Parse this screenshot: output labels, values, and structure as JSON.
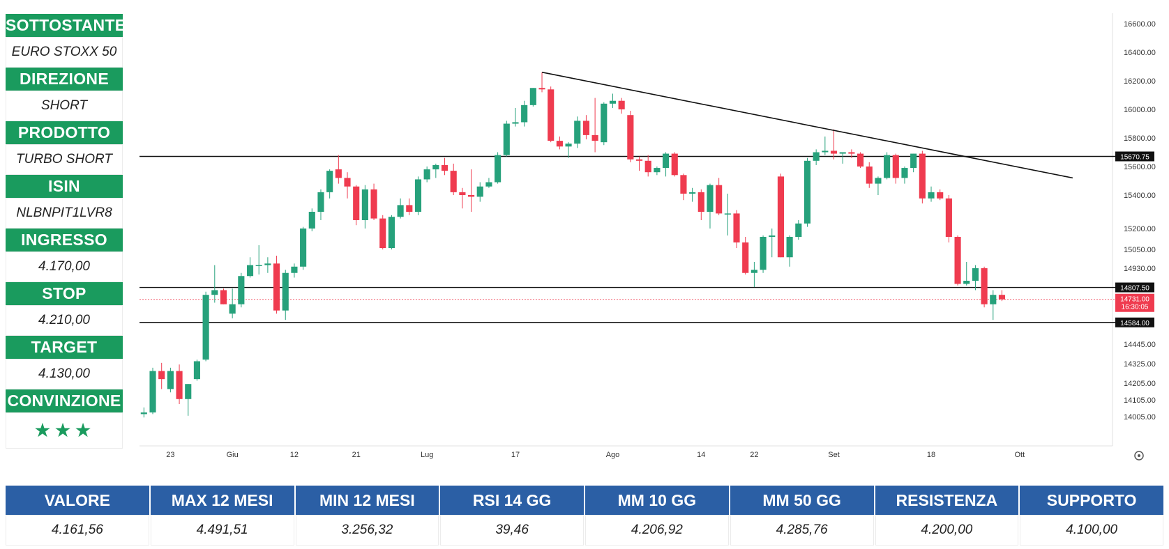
{
  "sidebar": {
    "items": [
      {
        "label": "SOTTOSTANTE",
        "value": "EURO STOXX 50"
      },
      {
        "label": "DIREZIONE",
        "value": "SHORT"
      },
      {
        "label": "PRODOTTO",
        "value": "TURBO SHORT"
      },
      {
        "label": "ISIN",
        "value": "NLBNPIT1LVR8"
      },
      {
        "label": "INGRESSO",
        "value": "4.170,00"
      },
      {
        "label": "STOP",
        "value": "4.210,00"
      },
      {
        "label": "TARGET",
        "value": "4.130,00"
      },
      {
        "label": "CONVINZIONE",
        "value": "★★★"
      }
    ]
  },
  "stats": {
    "columns": [
      {
        "label": "VALORE",
        "value": "4.161,56"
      },
      {
        "label": "MAX 12 MESI",
        "value": "4.491,51"
      },
      {
        "label": "MIN 12 MESI",
        "value": "3.256,32"
      },
      {
        "label": "RSI 14 GG",
        "value": "39,46"
      },
      {
        "label": "MM 10 GG",
        "value": "4.206,92"
      },
      {
        "label": "MM 50 GG",
        "value": "4.285,76"
      },
      {
        "label": "RESISTENZA",
        "value": "4.200,00"
      },
      {
        "label": "SUPPORTO",
        "value": "4.100,00"
      }
    ]
  },
  "colors": {
    "up": "#26a17b",
    "down": "#ef3b4f",
    "header_green": "#1a9b5e",
    "header_blue": "#2b5fa5"
  },
  "chart_data": {
    "type": "candlestick",
    "y_ticks": [
      16600,
      16400,
      16200,
      16000,
      15800,
      15600,
      15400,
      15200,
      15050,
      14930,
      14445,
      14325,
      14205,
      14105,
      14005
    ],
    "y_tick_labels": [
      "16600.00",
      "16400.00",
      "16200.00",
      "16000.00",
      "15800.00",
      "15600.00",
      "15400.00",
      "15200.00",
      "15050.00",
      "14930.00",
      "14445.00",
      "14325.00",
      "14205.00",
      "14105.00",
      "14005.00"
    ],
    "x_ticks": [
      {
        "label": "23",
        "index": 3
      },
      {
        "label": "Giu",
        "index": 10
      },
      {
        "label": "12",
        "index": 17
      },
      {
        "label": "21",
        "index": 24
      },
      {
        "label": "Lug",
        "index": 32
      },
      {
        "label": "17",
        "index": 42
      },
      {
        "label": "Ago",
        "index": 53
      },
      {
        "label": "14",
        "index": 63
      },
      {
        "label": "22",
        "index": 69
      },
      {
        "label": "Set",
        "index": 78
      },
      {
        "label": "18",
        "index": 89
      },
      {
        "label": "Ott",
        "index": 99
      }
    ],
    "horizontal_levels": [
      {
        "value": 15670.75,
        "label": "15670.75"
      },
      {
        "value": 14807.5,
        "label": "14807.50"
      },
      {
        "value": 14584.0,
        "label": "14584.00"
      }
    ],
    "last_price": {
      "value": 14731.0,
      "label": "14731.00",
      "countdown": "16:30:05"
    },
    "trendline": {
      "from": {
        "index": 45,
        "value": 16260
      },
      "to": {
        "index": 105,
        "value": 15520
      }
    },
    "candles": [
      {
        "o": 14020,
        "h": 14060,
        "l": 14000,
        "c": 14030
      },
      {
        "o": 14030,
        "h": 14300,
        "l": 14020,
        "c": 14280
      },
      {
        "o": 14280,
        "h": 14330,
        "l": 14170,
        "c": 14230
      },
      {
        "o": 14170,
        "h": 14300,
        "l": 14150,
        "c": 14280
      },
      {
        "o": 14280,
        "h": 14320,
        "l": 14080,
        "c": 14110
      },
      {
        "o": 14110,
        "h": 14200,
        "l": 14010,
        "c": 14200
      },
      {
        "o": 14230,
        "h": 14350,
        "l": 14220,
        "c": 14340
      },
      {
        "o": 14350,
        "h": 14780,
        "l": 14340,
        "c": 14760
      },
      {
        "o": 14760,
        "h": 14950,
        "l": 14710,
        "c": 14790
      },
      {
        "o": 14790,
        "h": 14800,
        "l": 14700,
        "c": 14700
      },
      {
        "o": 14640,
        "h": 14800,
        "l": 14610,
        "c": 14700
      },
      {
        "o": 14700,
        "h": 14900,
        "l": 14680,
        "c": 14880
      },
      {
        "o": 14880,
        "h": 15000,
        "l": 14870,
        "c": 14950
      },
      {
        "o": 14950,
        "h": 15080,
        "l": 14890,
        "c": 14950
      },
      {
        "o": 14950,
        "h": 15000,
        "l": 14900,
        "c": 14960
      },
      {
        "o": 14960,
        "h": 15010,
        "l": 14640,
        "c": 14660
      },
      {
        "o": 14660,
        "h": 14920,
        "l": 14600,
        "c": 14900
      },
      {
        "o": 14900,
        "h": 14960,
        "l": 14870,
        "c": 14940
      },
      {
        "o": 14940,
        "h": 15210,
        "l": 14920,
        "c": 15200
      },
      {
        "o": 15200,
        "h": 15320,
        "l": 15180,
        "c": 15300
      },
      {
        "o": 15300,
        "h": 15440,
        "l": 15250,
        "c": 15420
      },
      {
        "o": 15420,
        "h": 15580,
        "l": 15380,
        "c": 15570
      },
      {
        "o": 15580,
        "h": 15680,
        "l": 15480,
        "c": 15520
      },
      {
        "o": 15520,
        "h": 15560,
        "l": 15380,
        "c": 15460
      },
      {
        "o": 15460,
        "h": 15470,
        "l": 15220,
        "c": 15250
      },
      {
        "o": 15250,
        "h": 15470,
        "l": 15200,
        "c": 15440
      },
      {
        "o": 15440,
        "h": 15480,
        "l": 15250,
        "c": 15260
      },
      {
        "o": 15260,
        "h": 15280,
        "l": 15050,
        "c": 15060
      },
      {
        "o": 15060,
        "h": 15280,
        "l": 15050,
        "c": 15270
      },
      {
        "o": 15270,
        "h": 15380,
        "l": 15260,
        "c": 15340
      },
      {
        "o": 15340,
        "h": 15380,
        "l": 15280,
        "c": 15300
      },
      {
        "o": 15300,
        "h": 15530,
        "l": 15280,
        "c": 15510
      },
      {
        "o": 15510,
        "h": 15600,
        "l": 15490,
        "c": 15580
      },
      {
        "o": 15580,
        "h": 15620,
        "l": 15520,
        "c": 15610
      },
      {
        "o": 15610,
        "h": 15660,
        "l": 15540,
        "c": 15570
      },
      {
        "o": 15570,
        "h": 15620,
        "l": 15400,
        "c": 15420
      },
      {
        "o": 15420,
        "h": 15450,
        "l": 15320,
        "c": 15400
      },
      {
        "o": 15400,
        "h": 15580,
        "l": 15300,
        "c": 15390
      },
      {
        "o": 15390,
        "h": 15490,
        "l": 15360,
        "c": 15460
      },
      {
        "o": 15460,
        "h": 15520,
        "l": 15450,
        "c": 15490
      },
      {
        "o": 15490,
        "h": 15700,
        "l": 15480,
        "c": 15680
      },
      {
        "o": 15680,
        "h": 15920,
        "l": 15670,
        "c": 15900
      },
      {
        "o": 15900,
        "h": 16010,
        "l": 15880,
        "c": 15910
      },
      {
        "o": 15910,
        "h": 16060,
        "l": 15880,
        "c": 16030
      },
      {
        "o": 16030,
        "h": 16150,
        "l": 16020,
        "c": 16150
      },
      {
        "o": 16150,
        "h": 16260,
        "l": 16120,
        "c": 16140
      },
      {
        "o": 16140,
        "h": 16160,
        "l": 15770,
        "c": 15780
      },
      {
        "o": 15780,
        "h": 15810,
        "l": 15720,
        "c": 15740
      },
      {
        "o": 15740,
        "h": 15770,
        "l": 15660,
        "c": 15760
      },
      {
        "o": 15760,
        "h": 15950,
        "l": 15730,
        "c": 15920
      },
      {
        "o": 15920,
        "h": 15960,
        "l": 15790,
        "c": 15820
      },
      {
        "o": 15820,
        "h": 16080,
        "l": 15700,
        "c": 15780
      },
      {
        "o": 15770,
        "h": 16050,
        "l": 15750,
        "c": 16040
      },
      {
        "o": 16040,
        "h": 16110,
        "l": 16010,
        "c": 16060
      },
      {
        "o": 16060,
        "h": 16080,
        "l": 15970,
        "c": 16000
      },
      {
        "o": 15960,
        "h": 15990,
        "l": 15630,
        "c": 15650
      },
      {
        "o": 15650,
        "h": 15670,
        "l": 15570,
        "c": 15640
      },
      {
        "o": 15640,
        "h": 15680,
        "l": 15530,
        "c": 15560
      },
      {
        "o": 15560,
        "h": 15600,
        "l": 15540,
        "c": 15590
      },
      {
        "o": 15590,
        "h": 15700,
        "l": 15530,
        "c": 15690
      },
      {
        "o": 15690,
        "h": 15700,
        "l": 15530,
        "c": 15540
      },
      {
        "o": 15540,
        "h": 15550,
        "l": 15370,
        "c": 15410
      },
      {
        "o": 15410,
        "h": 15450,
        "l": 15360,
        "c": 15420
      },
      {
        "o": 15420,
        "h": 15440,
        "l": 15250,
        "c": 15300
      },
      {
        "o": 15300,
        "h": 15480,
        "l": 15200,
        "c": 15470
      },
      {
        "o": 15470,
        "h": 15520,
        "l": 15280,
        "c": 15290
      },
      {
        "o": 15290,
        "h": 15410,
        "l": 15150,
        "c": 15290
      },
      {
        "o": 15290,
        "h": 15310,
        "l": 15060,
        "c": 15100
      },
      {
        "o": 15100,
        "h": 15140,
        "l": 14890,
        "c": 14900
      },
      {
        "o": 14900,
        "h": 14970,
        "l": 14810,
        "c": 14920
      },
      {
        "o": 14920,
        "h": 15150,
        "l": 14900,
        "c": 15140
      },
      {
        "o": 15140,
        "h": 15200,
        "l": 15000,
        "c": 15150
      },
      {
        "o": 15530,
        "h": 15550,
        "l": 15000,
        "c": 15000
      },
      {
        "o": 15000,
        "h": 15150,
        "l": 14940,
        "c": 15140
      },
      {
        "o": 15140,
        "h": 15250,
        "l": 15120,
        "c": 15230
      },
      {
        "o": 15230,
        "h": 15660,
        "l": 15210,
        "c": 15640
      },
      {
        "o": 15640,
        "h": 15720,
        "l": 15610,
        "c": 15700
      },
      {
        "o": 15700,
        "h": 15810,
        "l": 15680,
        "c": 15710
      },
      {
        "o": 15710,
        "h": 15860,
        "l": 15650,
        "c": 15690
      },
      {
        "o": 15690,
        "h": 15700,
        "l": 15620,
        "c": 15700
      },
      {
        "o": 15700,
        "h": 15720,
        "l": 15660,
        "c": 15690
      },
      {
        "o": 15690,
        "h": 15700,
        "l": 15590,
        "c": 15600
      },
      {
        "o": 15600,
        "h": 15630,
        "l": 15450,
        "c": 15480
      },
      {
        "o": 15480,
        "h": 15530,
        "l": 15400,
        "c": 15520
      },
      {
        "o": 15520,
        "h": 15700,
        "l": 15510,
        "c": 15680
      },
      {
        "o": 15680,
        "h": 15690,
        "l": 15480,
        "c": 15520
      },
      {
        "o": 15520,
        "h": 15600,
        "l": 15480,
        "c": 15590
      },
      {
        "o": 15590,
        "h": 15690,
        "l": 15560,
        "c": 15690
      },
      {
        "o": 15690,
        "h": 15710,
        "l": 15350,
        "c": 15380
      },
      {
        "o": 15380,
        "h": 15460,
        "l": 15360,
        "c": 15420
      },
      {
        "o": 15420,
        "h": 15440,
        "l": 15370,
        "c": 15380
      },
      {
        "o": 15380,
        "h": 15400,
        "l": 15100,
        "c": 15140
      },
      {
        "o": 15140,
        "h": 15150,
        "l": 14820,
        "c": 14830
      },
      {
        "o": 14830,
        "h": 14970,
        "l": 14820,
        "c": 14850
      },
      {
        "o": 14850,
        "h": 14950,
        "l": 14790,
        "c": 14930
      },
      {
        "o": 14930,
        "h": 14940,
        "l": 14680,
        "c": 14700
      },
      {
        "o": 14700,
        "h": 14790,
        "l": 14600,
        "c": 14760
      },
      {
        "o": 14760,
        "h": 14790,
        "l": 14720,
        "c": 14731
      }
    ]
  }
}
